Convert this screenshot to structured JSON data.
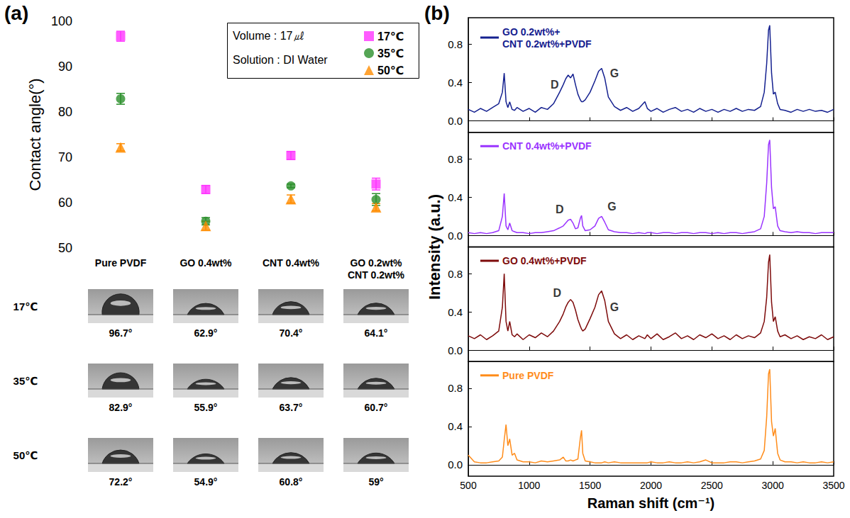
{
  "chart_data": [
    {
      "panel": "(a)",
      "type": "scatter",
      "y_label": "Contact angle(°)",
      "categories": [
        "Pure PVDF",
        "GO 0.4wt%",
        "CNT 0.4wt%",
        "GO 0.2wt%\nCNT 0.2wt%"
      ],
      "ylim": [
        50,
        100
      ],
      "yticks": [
        50,
        60,
        70,
        80,
        90,
        100
      ],
      "grid": false,
      "legend": "top-right",
      "annotations": [
        "Volume : 17㎕",
        "Solution : DI Water"
      ],
      "series": [
        {
          "name": "17℃",
          "color": "#ff33ff",
          "marker": "square",
          "values": [
            96.7,
            62.9,
            70.4,
            64.1
          ],
          "errors": [
            1.1,
            0.9,
            0.9,
            1.3
          ]
        },
        {
          "name": "35℃",
          "color": "#2a8f2a",
          "marker": "circle",
          "values": [
            82.9,
            55.9,
            63.7,
            60.7
          ],
          "errors": [
            1.2,
            0.8,
            0.4,
            1.3
          ]
        },
        {
          "name": "50℃",
          "color": "#ff8c00",
          "marker": "triangle",
          "values": [
            72.2,
            54.9,
            60.8,
            59
          ],
          "errors": [
            0.8,
            1.0,
            0.9,
            0.8
          ]
        }
      ],
      "droplet_images": {
        "row_labels": [
          "17℃",
          "35℃",
          "50℃"
        ],
        "angles": [
          [
            96.7,
            62.9,
            70.4,
            64.1
          ],
          [
            82.9,
            55.9,
            63.7,
            60.7
          ],
          [
            72.2,
            54.9,
            60.8,
            59
          ]
        ],
        "angle_labels": [
          [
            "96.7°",
            "62.9°",
            "70.4°",
            "64.1°"
          ],
          [
            "82.9°",
            "55.9°",
            "63.7°",
            "60.7°"
          ],
          [
            "72.2°",
            "54.9°",
            "60.8°",
            "59°"
          ]
        ]
      }
    },
    {
      "panel": "(b)",
      "type": "line",
      "x_label": "Raman shift (cm⁻¹)",
      "y_label": "Intensity (a.u.)",
      "xlim": [
        500,
        3500
      ],
      "xticks": [
        500,
        1000,
        1500,
        2000,
        2500,
        3000,
        3500
      ],
      "grid": false,
      "legend": "top-left",
      "x": [
        500,
        550,
        600,
        650,
        700,
        750,
        780,
        795,
        810,
        825,
        840,
        860,
        880,
        900,
        950,
        1000,
        1050,
        1100,
        1150,
        1200,
        1250,
        1280,
        1300,
        1320,
        1340,
        1360,
        1380,
        1400,
        1420,
        1430,
        1440,
        1460,
        1500,
        1540,
        1570,
        1595,
        1620,
        1650,
        1700,
        1750,
        1800,
        1850,
        1900,
        1950,
        1970,
        2000,
        2050,
        2100,
        2150,
        2200,
        2250,
        2300,
        2350,
        2400,
        2450,
        2500,
        2550,
        2600,
        2650,
        2700,
        2750,
        2800,
        2850,
        2900,
        2930,
        2950,
        2965,
        2975,
        2990,
        3005,
        3020,
        3040,
        3060,
        3100,
        3150,
        3200,
        3250,
        3300,
        3350,
        3400,
        3450,
        3500
      ],
      "series": [
        {
          "name": "GO 0.2wt%+\nCNT 0.2wt%+PVDF",
          "color": "#14208f",
          "ylim": [
            -0.12,
            1.08
          ],
          "yticks": [
            {
              "value": 0,
              "label": "0.0"
            },
            0.4,
            0.8
          ],
          "values": [
            0.12,
            0.09,
            0.13,
            0.1,
            0.14,
            0.18,
            0.3,
            0.5,
            0.2,
            0.14,
            0.2,
            0.12,
            0.11,
            0.14,
            0.1,
            0.13,
            0.09,
            0.14,
            0.12,
            0.18,
            0.3,
            0.38,
            0.44,
            0.48,
            0.45,
            0.49,
            0.38,
            0.28,
            0.22,
            0.2,
            0.2,
            0.22,
            0.3,
            0.42,
            0.52,
            0.55,
            0.45,
            0.25,
            0.15,
            0.11,
            0.14,
            0.1,
            0.13,
            0.2,
            0.13,
            0.1,
            0.13,
            0.09,
            0.12,
            0.14,
            0.1,
            0.12,
            0.09,
            0.13,
            0.1,
            0.12,
            0.09,
            0.12,
            0.1,
            0.13,
            0.1,
            0.12,
            0.11,
            0.15,
            0.3,
            0.6,
            0.95,
            1.0,
            0.5,
            0.28,
            0.3,
            0.18,
            0.12,
            0.11,
            0.09,
            0.12,
            0.1,
            0.12,
            0.1,
            0.11,
            0.09,
            0.12
          ],
          "annotations": [
            {
              "text": "D",
              "x": 1210,
              "y": 0.38
            },
            {
              "text": "G",
              "x": 1700,
              "y": 0.5
            }
          ]
        },
        {
          "name": "CNT 0.4wt%+PVDF",
          "color": "#9a33ff",
          "ylim": [
            -0.12,
            1.08
          ],
          "yticks": [
            {
              "value": 0,
              "label": "0.0"
            },
            0.4,
            0.8
          ],
          "values": [
            0.03,
            0.02,
            0.03,
            0.02,
            0.03,
            0.05,
            0.2,
            0.44,
            0.1,
            0.06,
            0.13,
            0.05,
            0.04,
            0.03,
            0.03,
            0.02,
            0.03,
            0.03,
            0.04,
            0.05,
            0.08,
            0.1,
            0.13,
            0.16,
            0.17,
            0.13,
            0.07,
            0.08,
            0.18,
            0.21,
            0.1,
            0.05,
            0.06,
            0.1,
            0.18,
            0.2,
            0.14,
            0.06,
            0.04,
            0.03,
            0.03,
            0.02,
            0.03,
            0.02,
            0.03,
            0.03,
            0.02,
            0.03,
            0.03,
            0.02,
            0.03,
            0.03,
            0.02,
            0.03,
            0.03,
            0.02,
            0.03,
            0.02,
            0.03,
            0.03,
            0.02,
            0.03,
            0.04,
            0.07,
            0.2,
            0.55,
            0.95,
            1.0,
            0.5,
            0.28,
            0.3,
            0.1,
            0.05,
            0.04,
            0.03,
            0.04,
            0.03,
            0.03,
            0.02,
            0.03,
            0.03,
            0.03
          ],
          "annotations": [
            {
              "text": "D",
              "x": 1250,
              "y": 0.27
            },
            {
              "text": "G",
              "x": 1680,
              "y": 0.3
            }
          ]
        },
        {
          "name": "GO 0.4wt%+PVDF",
          "color": "#7d0a0a",
          "ylim": [
            -0.12,
            1.08
          ],
          "yticks": [
            {
              "value": 0,
              "label": "0.0"
            },
            0.4,
            0.8
          ],
          "values": [
            0.15,
            0.12,
            0.16,
            0.11,
            0.15,
            0.2,
            0.45,
            0.8,
            0.3,
            0.2,
            0.3,
            0.16,
            0.14,
            0.17,
            0.11,
            0.16,
            0.13,
            0.18,
            0.14,
            0.2,
            0.3,
            0.38,
            0.45,
            0.5,
            0.53,
            0.5,
            0.42,
            0.32,
            0.25,
            0.22,
            0.2,
            0.22,
            0.33,
            0.45,
            0.58,
            0.62,
            0.52,
            0.3,
            0.17,
            0.12,
            0.16,
            0.11,
            0.15,
            0.12,
            0.16,
            0.12,
            0.17,
            0.11,
            0.14,
            0.18,
            0.12,
            0.15,
            0.11,
            0.16,
            0.13,
            0.17,
            0.12,
            0.15,
            0.11,
            0.16,
            0.12,
            0.15,
            0.13,
            0.18,
            0.3,
            0.55,
            0.92,
            1.0,
            0.5,
            0.3,
            0.35,
            0.2,
            0.14,
            0.16,
            0.12,
            0.15,
            0.11,
            0.14,
            0.12,
            0.16,
            0.11,
            0.14
          ],
          "annotations": [
            {
              "text": "D",
              "x": 1230,
              "y": 0.6
            },
            {
              "text": "G",
              "x": 1700,
              "y": 0.45
            }
          ]
        },
        {
          "name": "Pure PVDF",
          "color": "#ff8c1a",
          "ylim": [
            -0.12,
            1.08
          ],
          "yticks": [
            {
              "value": 0,
              "label": "0.0"
            },
            0.4,
            0.8
          ],
          "values": [
            0.1,
            0.03,
            0.02,
            0.02,
            0.03,
            0.04,
            0.08,
            0.26,
            0.42,
            0.2,
            0.27,
            0.1,
            0.12,
            0.05,
            0.03,
            0.03,
            0.02,
            0.04,
            0.03,
            0.04,
            0.05,
            0.08,
            0.04,
            0.04,
            0.05,
            0.04,
            0.05,
            0.06,
            0.28,
            0.36,
            0.12,
            0.04,
            0.03,
            0.02,
            0.02,
            0.02,
            0.03,
            0.02,
            0.03,
            0.02,
            0.02,
            0.02,
            0.02,
            0.02,
            0.02,
            0.03,
            0.02,
            0.02,
            0.03,
            0.02,
            0.02,
            0.03,
            0.02,
            0.03,
            0.05,
            0.02,
            0.02,
            0.02,
            0.03,
            0.03,
            0.02,
            0.03,
            0.04,
            0.06,
            0.15,
            0.5,
            0.95,
            1.0,
            0.45,
            0.3,
            0.38,
            0.12,
            0.05,
            0.03,
            0.03,
            0.02,
            0.03,
            0.02,
            0.02,
            0.03,
            0.02,
            0.03
          ],
          "annotations": []
        }
      ]
    }
  ]
}
